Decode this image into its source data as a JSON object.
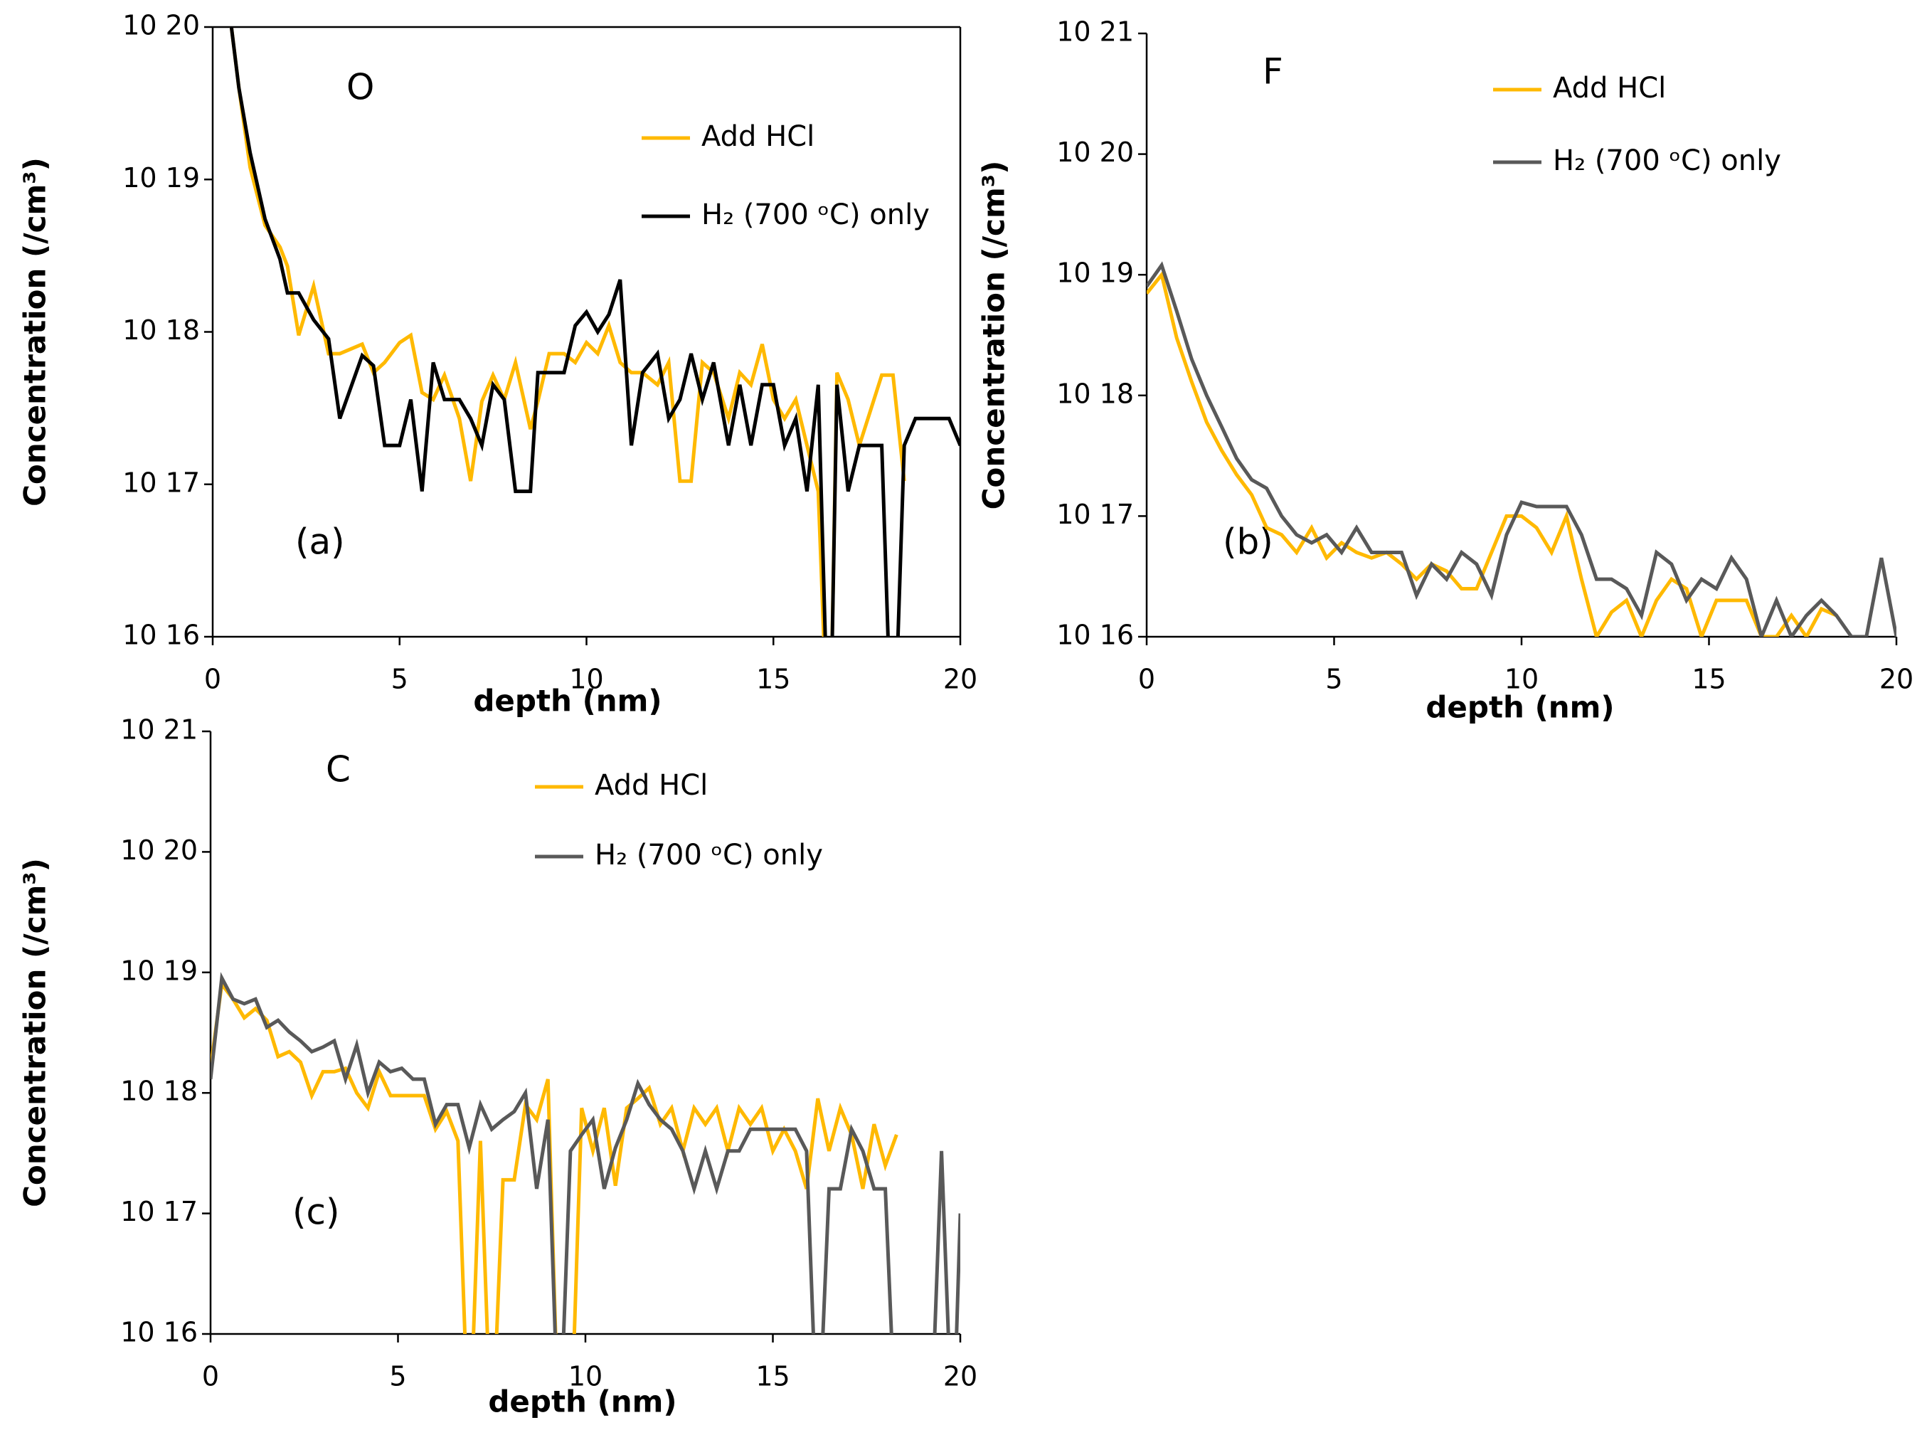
{
  "chart_data": [
    {
      "type": "line",
      "annotations": [
        "O",
        "(a)"
      ],
      "xlabel": "depth (nm)",
      "ylabel": "Concentration (/cm³)",
      "xlim": [
        0,
        20
      ],
      "xticks": [
        0,
        5,
        10,
        15,
        20
      ],
      "ylim": [
        1e+16,
        1e+20
      ],
      "log_y": true,
      "box": true,
      "yticks": [
        {
          "value": 1e+16,
          "label": "10 16"
        },
        {
          "value": 1e+17,
          "label": "10 17"
        },
        {
          "value": 1e+18,
          "label": "10 18"
        },
        {
          "value": 1e+19,
          "label": "10 19"
        },
        {
          "value": 1e+20,
          "label": "10 20"
        }
      ],
      "x": [
        0.5,
        0.7,
        1.0,
        1.4,
        1.8,
        2.0,
        2.3,
        2.7,
        3.1,
        3.4,
        4.0,
        4.3,
        4.6,
        5.0,
        5.3,
        5.6,
        5.9,
        6.2,
        6.6,
        6.9,
        7.2,
        7.5,
        7.8,
        8.1,
        8.5,
        8.7,
        9.0,
        9.4,
        9.7,
        10.0,
        10.3,
        10.6,
        10.9,
        11.2,
        11.5,
        11.9,
        12.2,
        12.5,
        12.8,
        13.1,
        13.4,
        13.8,
        14.1,
        14.4,
        14.7,
        15.0,
        15.3,
        15.6,
        15.9,
        16.2,
        16.5,
        16.7,
        17.0,
        17.3,
        17.9,
        18.2,
        18.5,
        18.8,
        19.7,
        20.0
      ],
      "series": [
        {
          "name": "Add HCl",
          "color": "#ffb900",
          "values": [
            1e+20,
            4e+19,
            1.2e+19,
            5e+18,
            3.6e+18,
            2.7e+18,
            9.5e+17,
            2e+18,
            7.2e+17,
            7.2e+17,
            8.3e+17,
            5.4e+17,
            6.3e+17,
            8.5e+17,
            9.5e+17,
            4e+17,
            3.6e+17,
            5.2e+17,
            2.7e+17,
            1.05e+17,
            3.5e+17,
            5.2e+17,
            3.6e+17,
            6.3e+17,
            2.3e+17,
            3.5e+17,
            7.2e+17,
            7.2e+17,
            6.3e+17,
            8.5e+17,
            7.2e+17,
            1.1e+18,
            6.3e+17,
            5.4e+17,
            5.4e+17,
            4.5e+17,
            6.3e+17,
            1.05e+17,
            1.05e+17,
            6.3e+17,
            5.4e+17,
            2.7e+17,
            5.4e+17,
            4.5e+17,
            8.3e+17,
            3.6e+17,
            2.7e+17,
            3.6e+17,
            1.8e+17,
            9e+16,
            1000000000000000.0,
            5.4e+17,
            3.6e+17,
            1.8e+17,
            5.2e+17,
            5.2e+17,
            1.05e+17,
            null,
            null,
            null
          ]
        },
        {
          "name": "H₂ (700 ᵒC) only",
          "color": "#000000",
          "values": [
            1e+20,
            4e+19,
            1.5e+19,
            5.5e+18,
            3e+18,
            1.8e+18,
            1.8e+18,
            1.2e+18,
            9e+17,
            2.7e+17,
            7e+17,
            6e+17,
            1.8e+17,
            1.8e+17,
            3.6e+17,
            9e+16,
            6.3e+17,
            3.6e+17,
            3.6e+17,
            2.7e+17,
            1.8e+17,
            4.5e+17,
            3.6e+17,
            9e+16,
            9e+16,
            5.4e+17,
            5.4e+17,
            5.4e+17,
            1.1e+18,
            1.35e+18,
            1e+18,
            1.3e+18,
            2.2e+18,
            1.8e+17,
            5.4e+17,
            7.2e+17,
            2.7e+17,
            3.6e+17,
            7.2e+17,
            3.6e+17,
            6.3e+17,
            1.8e+17,
            4.5e+17,
            1.8e+17,
            4.5e+17,
            4.5e+17,
            1.8e+17,
            2.7e+17,
            9e+16,
            4.5e+17,
            1000000000000000.0,
            4.5e+17,
            9e+16,
            1.8e+17,
            1.8e+17,
            1000000000000000.0,
            1.8e+17,
            2.7e+17,
            2.7e+17,
            1.8e+17
          ]
        }
      ]
    },
    {
      "type": "line",
      "annotations": [
        "F",
        "(b)"
      ],
      "xlabel": "depth (nm)",
      "ylabel": "Concentration (/cm³)",
      "xlim": [
        0,
        20
      ],
      "xticks": [
        0,
        5,
        10,
        15,
        20
      ],
      "ylim": [
        1e+16,
        1e+21
      ],
      "log_y": true,
      "box": false,
      "yticks": [
        {
          "value": 1e+16,
          "label": "10 16"
        },
        {
          "value": 1e+17,
          "label": "10 17"
        },
        {
          "value": 1e+18,
          "label": "10 18"
        },
        {
          "value": 1e+19,
          "label": "10 19"
        },
        {
          "value": 1e+20,
          "label": "10 20"
        },
        {
          "value": 1e+21,
          "label": "10 21"
        }
      ],
      "x": [
        0,
        0.4,
        0.8,
        1.2,
        1.6,
        2.0,
        2.4,
        2.8,
        3.2,
        3.6,
        4.0,
        4.4,
        4.8,
        5.2,
        5.6,
        6.0,
        6.4,
        6.8,
        7.2,
        7.6,
        8.0,
        8.4,
        8.8,
        9.2,
        9.6,
        10.0,
        10.4,
        10.8,
        11.2,
        11.6,
        12.0,
        12.4,
        12.8,
        13.2,
        13.6,
        14.0,
        14.4,
        14.8,
        15.2,
        15.6,
        16.0,
        16.4,
        16.8,
        17.2,
        17.6,
        18.0,
        18.4,
        18.8,
        19.2,
        19.6,
        20.0
      ],
      "series": [
        {
          "name": "Add HCl",
          "color": "#ffb900",
          "values": [
            7e+18,
            1e+19,
            3e+18,
            1.3e+18,
            6e+17,
            3.5e+17,
            2.2e+17,
            1.5e+17,
            8e+16,
            7e+16,
            5e+16,
            8e+16,
            4.5e+16,
            6e+16,
            5e+16,
            4.5e+16,
            5e+16,
            4e+16,
            3e+16,
            4e+16,
            3.5e+16,
            2.5e+16,
            2.5e+16,
            5e+16,
            1e+17,
            1e+17,
            8e+16,
            5e+16,
            1e+17,
            3e+16,
            1e+16,
            1.6e+16,
            2e+16,
            1e+16,
            2e+16,
            3e+16,
            2.5e+16,
            1e+16,
            2e+16,
            2e+16,
            2e+16,
            1e+16,
            1e+16,
            1.5e+16,
            1e+16,
            1.7e+16,
            1.5e+16,
            null,
            null,
            null,
            null
          ]
        },
        {
          "name": "H₂ (700 ᵒC) only",
          "color": "#595959",
          "values": [
            8e+18,
            1.2e+19,
            5e+18,
            2e+18,
            1e+18,
            5.5e+17,
            3e+17,
            2e+17,
            1.7e+17,
            1e+17,
            7e+16,
            6e+16,
            7e+16,
            5e+16,
            8e+16,
            5e+16,
            5e+16,
            5e+16,
            2.2e+16,
            4e+16,
            3e+16,
            5e+16,
            4e+16,
            2.2e+16,
            7e+16,
            1.3e+17,
            1.2e+17,
            1.2e+17,
            1.2e+17,
            7e+16,
            3e+16,
            3e+16,
            2.5e+16,
            1.5e+16,
            5e+16,
            4e+16,
            2e+16,
            3e+16,
            2.5e+16,
            4.5e+16,
            3e+16,
            1e+16,
            2e+16,
            1e+16,
            1.5e+16,
            2e+16,
            1.5e+16,
            1e+16,
            1e+16,
            4.5e+16,
            1e+16
          ]
        }
      ]
    },
    {
      "type": "line",
      "annotations": [
        "C",
        "(c)"
      ],
      "xlabel": "depth (nm)",
      "ylabel": "Concentration (/cm³)",
      "xlim": [
        0,
        20
      ],
      "xticks": [
        0,
        5,
        10,
        15,
        20
      ],
      "ylim": [
        1e+16,
        1e+21
      ],
      "log_y": true,
      "box": false,
      "yticks": [
        {
          "value": 1e+16,
          "label": "10 16"
        },
        {
          "value": 1e+17,
          "label": "10 17"
        },
        {
          "value": 1e+18,
          "label": "10 18"
        },
        {
          "value": 1e+19,
          "label": "10 19"
        },
        {
          "value": 1e+20,
          "label": "10 20"
        },
        {
          "value": 1e+21,
          "label": "10 21"
        }
      ],
      "x": [
        0,
        0.3,
        0.6,
        0.9,
        1.2,
        1.5,
        1.8,
        2.1,
        2.4,
        2.7,
        3.0,
        3.3,
        3.6,
        3.9,
        4.2,
        4.5,
        4.8,
        5.1,
        5.4,
        5.7,
        6.0,
        6.3,
        6.6,
        6.9,
        7.2,
        7.5,
        7.8,
        8.1,
        8.4,
        8.7,
        9.0,
        9.3,
        9.6,
        9.9,
        10.2,
        10.5,
        10.8,
        11.1,
        11.4,
        11.7,
        12.0,
        12.3,
        12.6,
        12.9,
        13.2,
        13.5,
        13.8,
        14.1,
        14.4,
        14.7,
        15.0,
        15.3,
        15.6,
        15.9,
        16.2,
        16.5,
        16.8,
        17.1,
        17.4,
        17.7,
        18.0,
        18.3,
        18.6,
        18.9,
        19.2,
        19.5,
        19.8,
        20.0
      ],
      "series": [
        {
          "name": "Add HCl",
          "color": "#ffb900",
          "values": [
            1.6e+18,
            8e+18,
            6e+18,
            4.2e+18,
            5e+18,
            4e+18,
            2e+18,
            2.2e+18,
            1.8e+18,
            9.5e+17,
            1.5e+18,
            1.5e+18,
            1.6e+18,
            1e+18,
            7.5e+17,
            1.5e+18,
            9.5e+17,
            9.5e+17,
            9.5e+17,
            9.5e+17,
            5e+17,
            7e+17,
            4e+17,
            1000000000000000.0,
            4e+17,
            1000000000000000.0,
            1.9e+17,
            1.9e+17,
            8e+17,
            6e+17,
            1.3e+18,
            1000000000000000.0,
            1000000000000000.0,
            7.5e+17,
            3.3e+17,
            7.5e+17,
            1.7e+17,
            7.5e+17,
            9e+17,
            1.1e+18,
            5.5e+17,
            7.5e+17,
            3.3e+17,
            7.5e+17,
            5.5e+17,
            7.5e+17,
            3.3e+17,
            7.5e+17,
            5.5e+17,
            7.5e+17,
            3.3e+17,
            5e+17,
            3.3e+17,
            1.6e+17,
            9e+17,
            3.3e+17,
            7.5e+17,
            4.5e+17,
            1.6e+17,
            5.5e+17,
            2.5e+17,
            4.5e+17,
            null,
            null,
            null,
            null,
            null,
            null
          ]
        },
        {
          "name": "H₂ (700 ᵒC) only",
          "color": "#595959",
          "values": [
            1.3e+18,
            9e+18,
            6e+18,
            5.5e+18,
            6e+18,
            3.5e+18,
            4e+18,
            3.2e+18,
            2.7e+18,
            2.2e+18,
            2.4e+18,
            2.7e+18,
            1.3e+18,
            2.5e+18,
            1e+18,
            1.8e+18,
            1.5e+18,
            1.6e+18,
            1.3e+18,
            1.3e+18,
            5.5e+17,
            8e+17,
            8e+17,
            3.5e+17,
            8e+17,
            5e+17,
            6e+17,
            7e+17,
            1e+18,
            1.6e+17,
            6e+17,
            1000000000000000.0,
            3.3e+17,
            4.5e+17,
            6e+17,
            1.6e+17,
            3.5e+17,
            6e+17,
            1.2e+18,
            8e+17,
            6e+17,
            5e+17,
            3.3e+17,
            1.6e+17,
            3.3e+17,
            1.6e+17,
            3.3e+17,
            3.3e+17,
            5e+17,
            5e+17,
            5e+17,
            5e+17,
            5e+17,
            3.3e+17,
            1000000000000000.0,
            1.6e+17,
            1.6e+17,
            5e+17,
            3.3e+17,
            1.6e+17,
            1.6e+17,
            1000000000000000.0,
            null,
            null,
            1000000000000000.0,
            3.3e+17,
            1000000000000000.0,
            1e+17
          ]
        }
      ]
    }
  ]
}
